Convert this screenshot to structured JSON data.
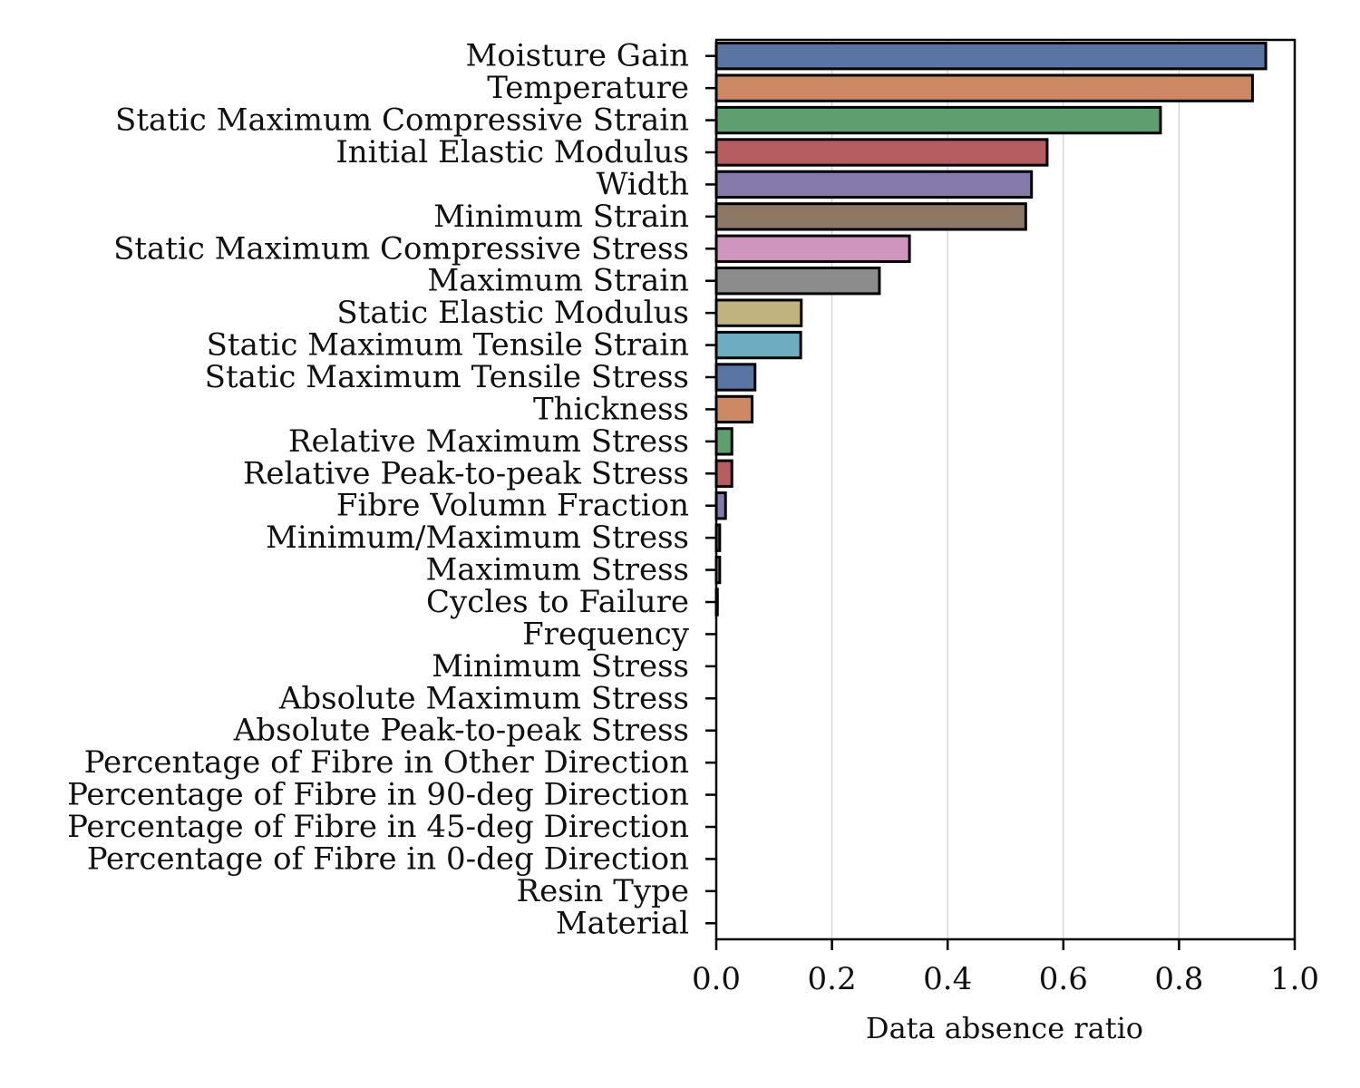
{
  "chart_data": {
    "type": "bar",
    "orientation": "horizontal",
    "title": "",
    "xlabel": "Data absence ratio",
    "ylabel": "",
    "xlim": [
      0,
      1
    ],
    "xticks": [
      "0.0",
      "0.2",
      "0.4",
      "0.6",
      "0.8",
      "1.0"
    ],
    "grid": "vertical",
    "legend": "none",
    "categories": [
      "Moisture Gain",
      "Temperature",
      "Static Maximum Compressive Strain",
      "Initial Elastic Modulus",
      "Width",
      "Minimum Strain",
      "Static Maximum Compressive Stress",
      "Maximum Strain",
      "Static Elastic Modulus",
      "Static Maximum Tensile Strain",
      "Static Maximum Tensile Stress",
      "Thickness",
      "Relative Maximum Stress",
      "Relative Peak-to-peak Stress",
      "Fibre Volumn Fraction",
      "Minimum/Maximum Stress",
      "Maximum Stress",
      "Cycles to Failure",
      "Frequency",
      "Minimum Stress",
      "Absolute Maximum Stress",
      "Absolute Peak-to-peak Stress",
      "Percentage of Fibre in Other Direction",
      "Percentage of Fibre in 90-deg Direction",
      "Percentage of Fibre in 45-deg Direction",
      "Percentage of Fibre in 0-deg Direction",
      "Resin Type",
      "Material"
    ],
    "values": [
      0.95,
      0.927,
      0.768,
      0.572,
      0.545,
      0.535,
      0.334,
      0.282,
      0.147,
      0.146,
      0.067,
      0.062,
      0.027,
      0.027,
      0.016,
      0.006,
      0.006,
      0.002,
      0.0,
      0.0,
      0.0,
      0.0,
      0.0,
      0.0,
      0.0,
      0.0,
      0.0,
      0.0
    ],
    "colors": [
      "#5875a4",
      "#cc8963",
      "#5f9e6e",
      "#b55d60",
      "#857aab",
      "#8d7866",
      "#d095bf",
      "#8c8c8c",
      "#c1b37f",
      "#6eacc2"
    ],
    "bar_edge_color": "#000000",
    "grid_color": "#d0d0d0"
  }
}
